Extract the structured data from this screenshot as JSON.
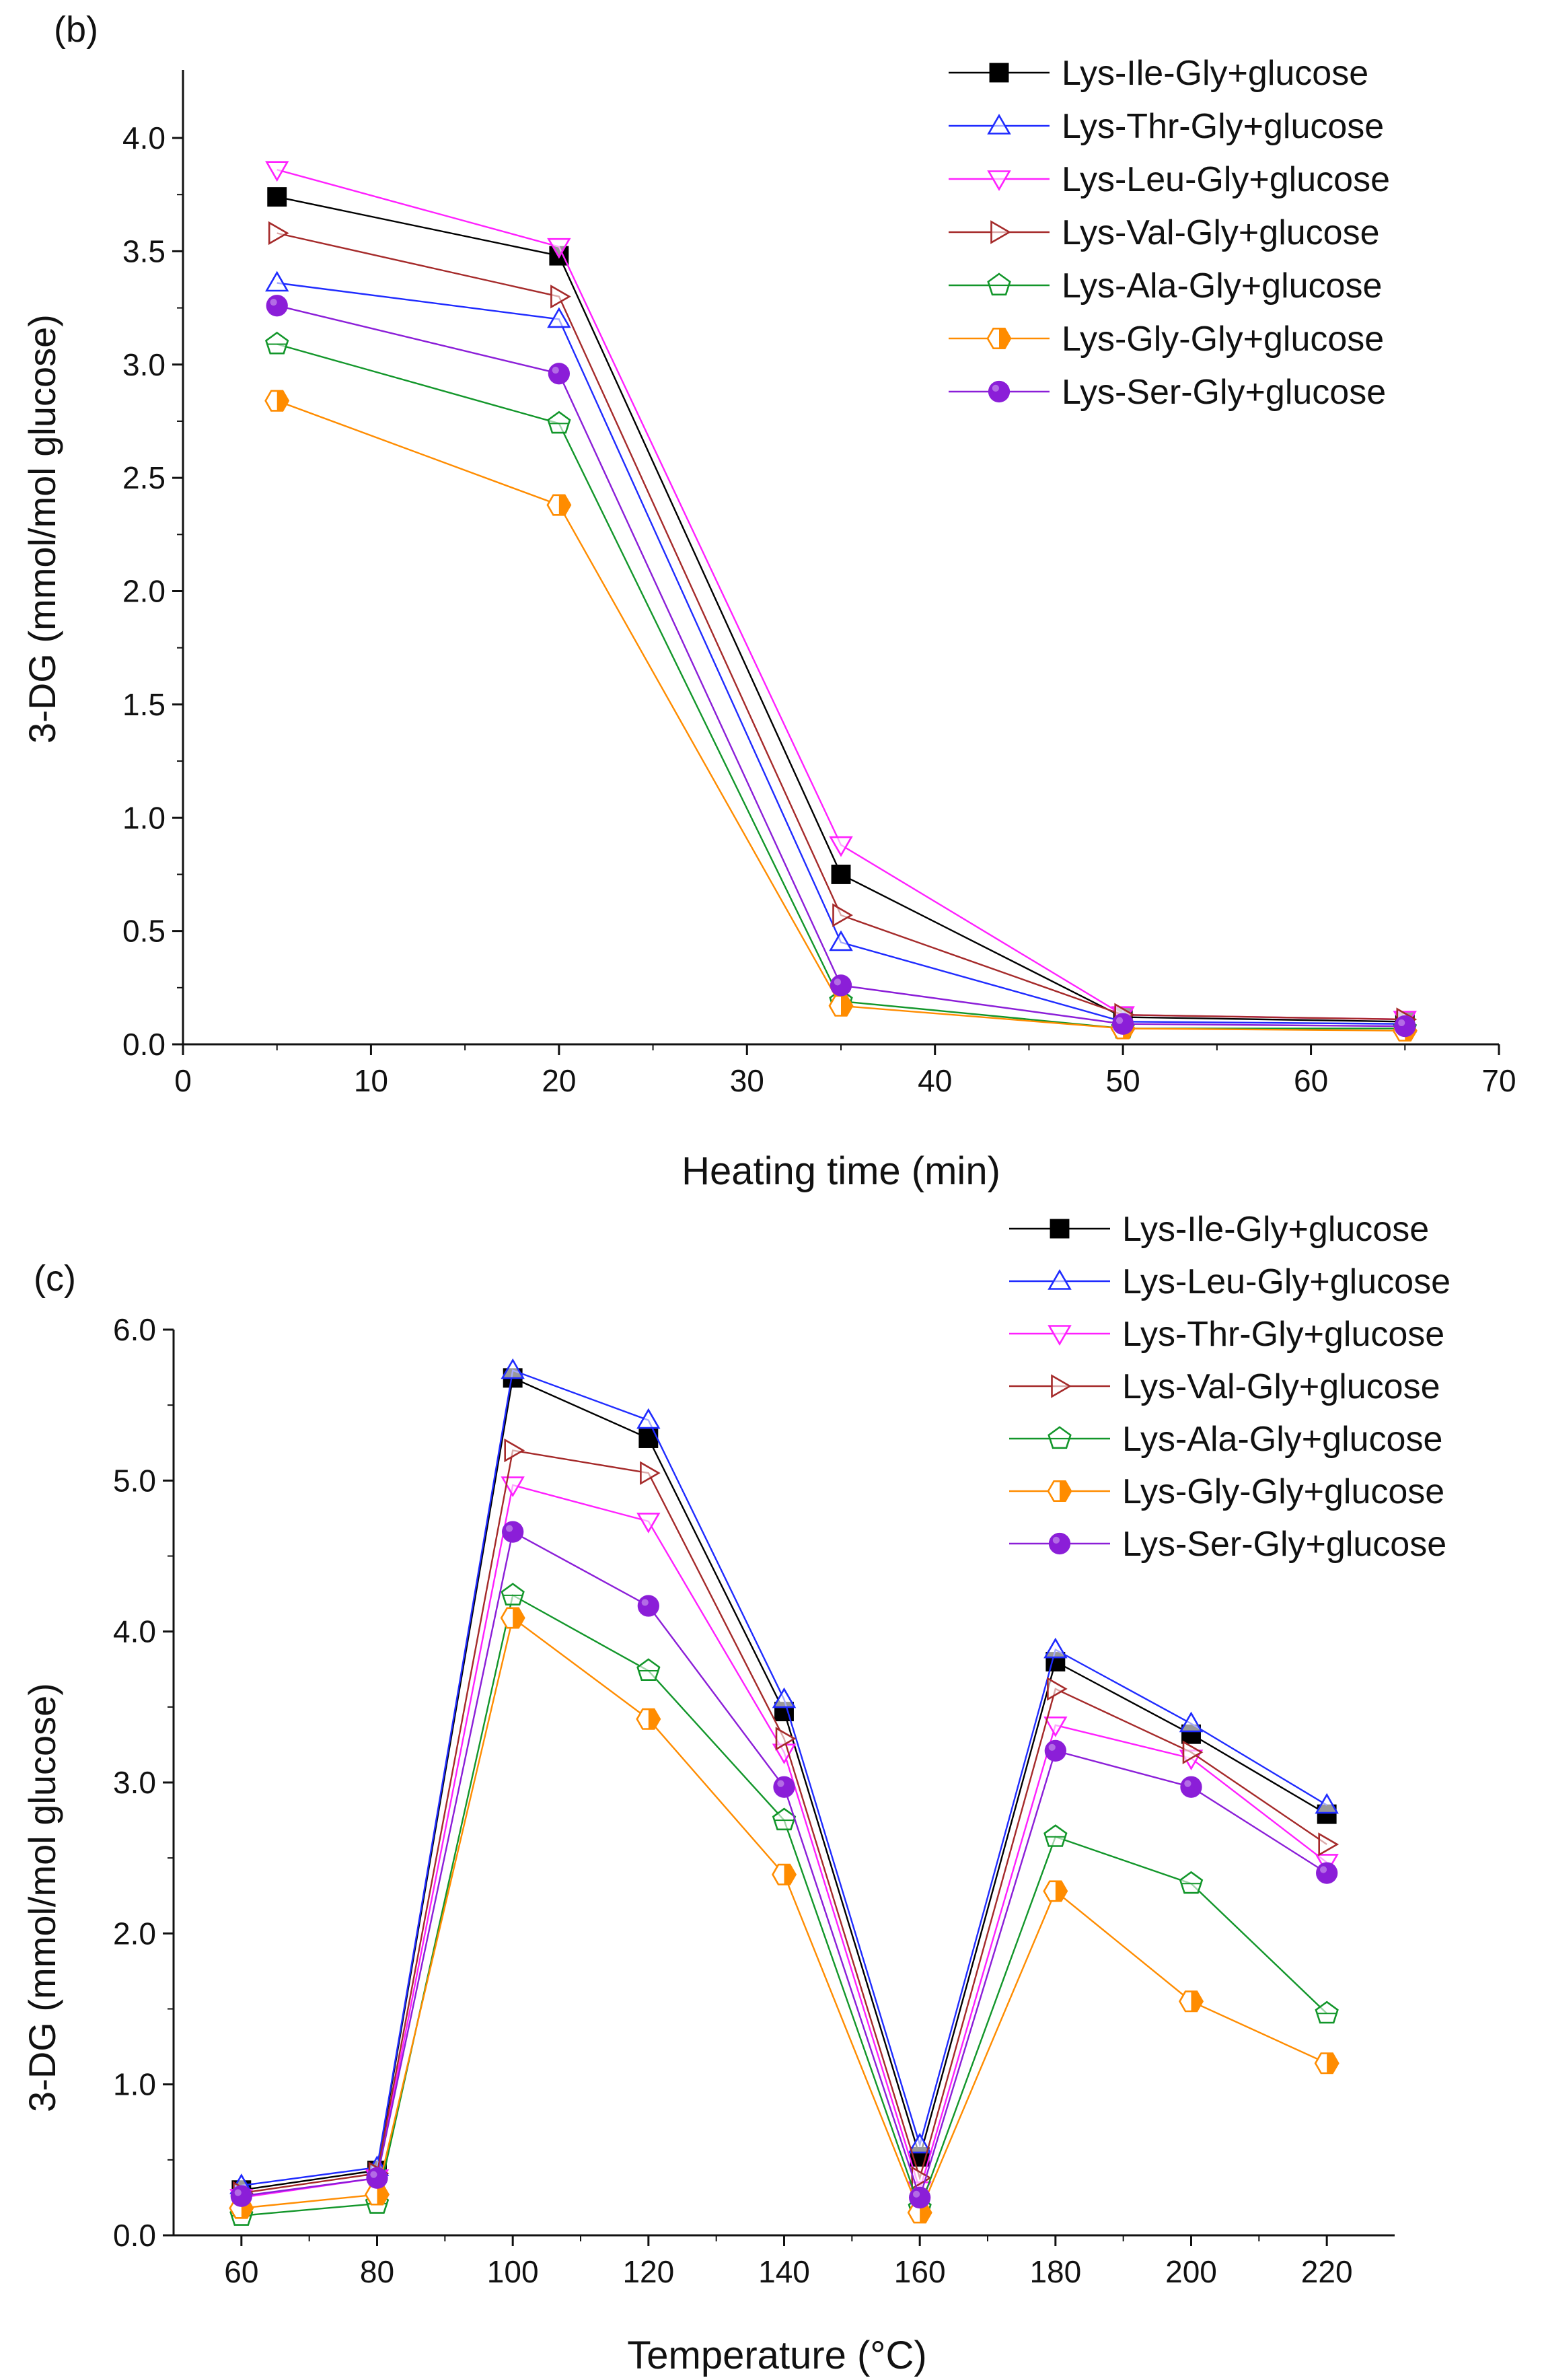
{
  "chart_data": [
    {
      "id": "b",
      "type": "line",
      "panel_label": "(b)",
      "xlabel": "Heating time (min)",
      "ylabel": "3-DG (mmol/mol glucose)",
      "xlim": [
        0,
        70
      ],
      "ylim": [
        0,
        4.3
      ],
      "xticks": [
        0,
        10,
        20,
        30,
        40,
        50,
        60,
        70
      ],
      "xtick_labels": [
        "0",
        "10",
        "20",
        "30",
        "40",
        "50",
        "60",
        "70"
      ],
      "yticks": [
        0,
        0.5,
        1.0,
        1.5,
        2.0,
        2.5,
        3.0,
        3.5,
        4.0
      ],
      "ytick_labels": [
        "0.0",
        "0.5",
        "1.0",
        "1.5",
        "2.0",
        "2.5",
        "3.0",
        "3.5",
        "4.0"
      ],
      "grid": false,
      "legend_position": "top-right",
      "x": [
        5,
        20,
        35,
        50,
        65
      ],
      "series": [
        {
          "name": "Lys-Ile-Gly+glucose",
          "color": "#000000",
          "marker": "square-filled",
          "values": [
            3.74,
            3.48,
            0.75,
            0.12,
            0.1
          ]
        },
        {
          "name": "Lys-Thr-Gly+glucose",
          "color": "#1f2bff",
          "marker": "triangle-up-open",
          "values": [
            3.36,
            3.2,
            0.45,
            0.1,
            0.09
          ]
        },
        {
          "name": "Lys-Leu-Gly+glucose",
          "color": "#ff20ff",
          "marker": "triangle-down-open",
          "values": [
            3.86,
            3.52,
            0.88,
            0.13,
            0.11
          ]
        },
        {
          "name": "Lys-Val-Gly+glucose",
          "color": "#a52a2a",
          "marker": "triangle-right-open",
          "values": [
            3.58,
            3.3,
            0.57,
            0.13,
            0.11
          ]
        },
        {
          "name": "Lys-Ala-Gly+glucose",
          "color": "#12962a",
          "marker": "pentagon-open",
          "values": [
            3.09,
            2.74,
            0.19,
            0.07,
            0.07
          ]
        },
        {
          "name": "Lys-Gly-Gly+glucose",
          "color": "#ff8c00",
          "marker": "hexagon-half",
          "values": [
            2.84,
            2.38,
            0.17,
            0.07,
            0.06
          ]
        },
        {
          "name": "Lys-Ser-Gly+glucose",
          "color": "#8b1ed8",
          "marker": "circle-filled",
          "values": [
            3.26,
            2.96,
            0.26,
            0.09,
            0.08
          ]
        }
      ]
    },
    {
      "id": "c",
      "type": "line",
      "panel_label": "(c)",
      "xlabel": "Temperature (°C)",
      "ylabel": "3-DG (mmol/mol glucose)",
      "xlim": [
        50,
        230
      ],
      "ylim": [
        0,
        6.0
      ],
      "xticks": [
        60,
        80,
        100,
        120,
        140,
        160,
        180,
        200,
        220
      ],
      "xtick_labels": [
        "60",
        "80",
        "100",
        "120",
        "140",
        "160",
        "180",
        "200",
        "220"
      ],
      "yticks": [
        0,
        1,
        2,
        3,
        4,
        5,
        6
      ],
      "ytick_labels": [
        "0.0",
        "1.0",
        "2.0",
        "3.0",
        "4.0",
        "5.0",
        "6.0"
      ],
      "grid": false,
      "legend_position": "top-right",
      "x": [
        60,
        80,
        100,
        120,
        140,
        160,
        180,
        200,
        220
      ],
      "series": [
        {
          "name": "Lys-Ile-Gly+glucose",
          "color": "#000000",
          "marker": "square-filled",
          "values": [
            0.3,
            0.43,
            5.68,
            5.28,
            3.47,
            0.52,
            3.8,
            3.32,
            2.79
          ]
        },
        {
          "name": "Lys-Leu-Gly+glucose",
          "color": "#1f2bff",
          "marker": "triangle-up-open",
          "values": [
            0.33,
            0.45,
            5.73,
            5.4,
            3.55,
            0.6,
            3.88,
            3.39,
            2.85
          ]
        },
        {
          "name": "Lys-Thr-Gly+glucose",
          "color": "#ff20ff",
          "marker": "triangle-down-open",
          "values": [
            0.25,
            0.38,
            4.97,
            4.73,
            3.2,
            0.3,
            3.38,
            3.16,
            2.47
          ]
        },
        {
          "name": "Lys-Val-Gly+glucose",
          "color": "#a52a2a",
          "marker": "triangle-right-open",
          "values": [
            0.28,
            0.41,
            5.2,
            5.05,
            3.29,
            0.38,
            3.62,
            3.2,
            2.59
          ]
        },
        {
          "name": "Lys-Ala-Gly+glucose",
          "color": "#12962a",
          "marker": "pentagon-open",
          "values": [
            0.13,
            0.21,
            4.24,
            3.74,
            2.75,
            0.18,
            2.64,
            2.33,
            1.47
          ]
        },
        {
          "name": "Lys-Gly-Gly+glucose",
          "color": "#ff8c00",
          "marker": "hexagon-half",
          "values": [
            0.18,
            0.27,
            4.09,
            3.42,
            2.39,
            0.15,
            2.28,
            1.55,
            1.14
          ]
        },
        {
          "name": "Lys-Ser-Gly+glucose",
          "color": "#8b1ed8",
          "marker": "circle-filled",
          "values": [
            0.26,
            0.38,
            4.66,
            4.17,
            2.97,
            0.25,
            3.21,
            2.97,
            2.4
          ]
        }
      ]
    }
  ]
}
